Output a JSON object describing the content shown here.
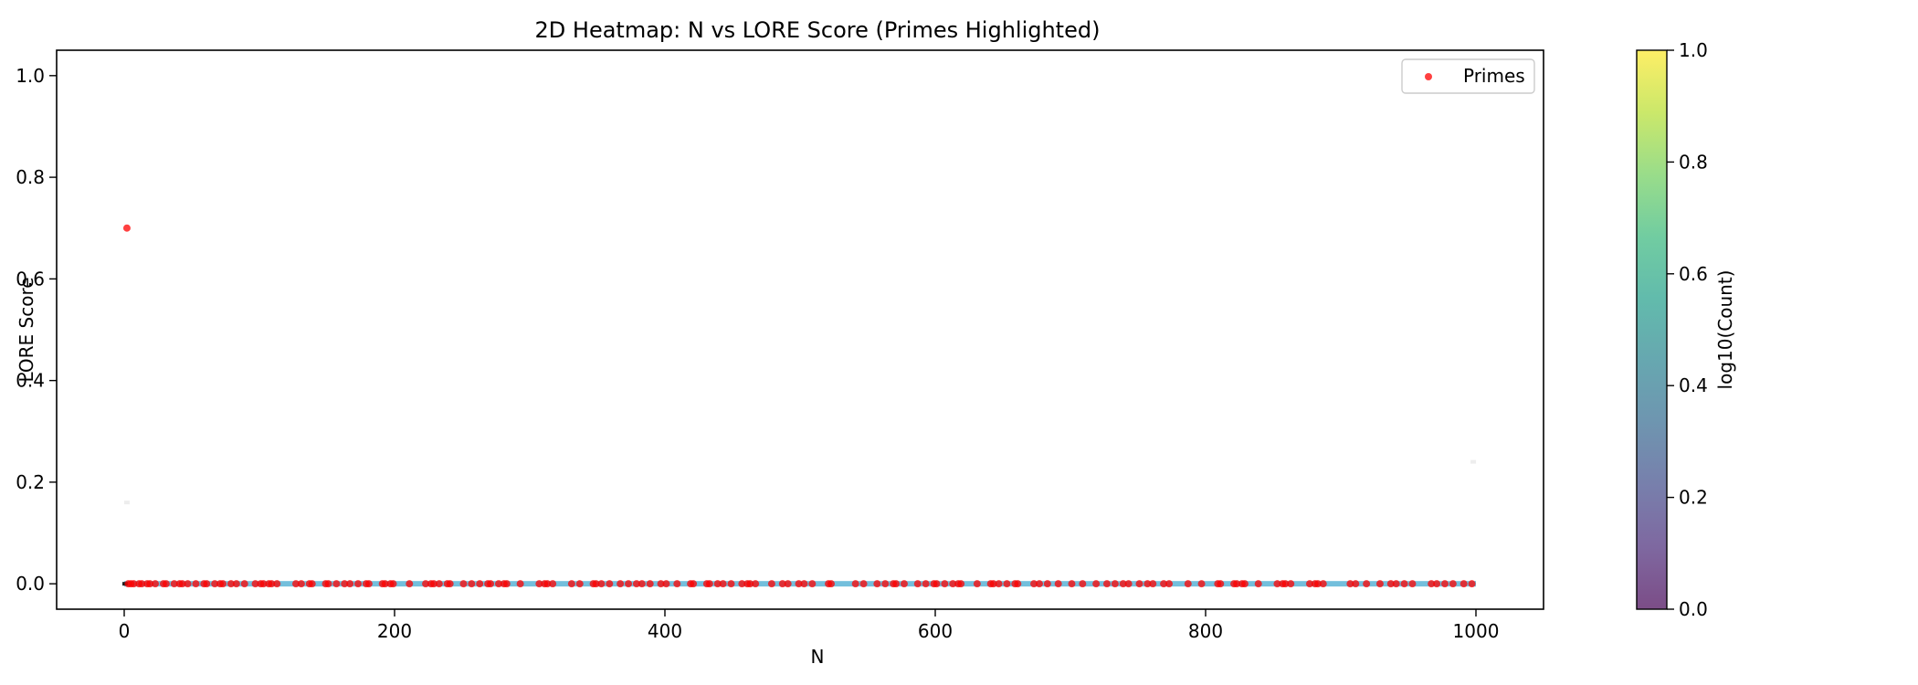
{
  "chart_data": {
    "type": "scatter",
    "title": "2D Heatmap: N vs LORE Score (Primes Highlighted)",
    "xlabel": "N",
    "ylabel": "LORE Score",
    "xlim": [
      -50,
      1050
    ],
    "ylim": [
      -0.05,
      1.05
    ],
    "xticks": [
      0,
      200,
      400,
      600,
      800,
      1000
    ],
    "yticks": [
      0.0,
      0.2,
      0.4,
      0.6,
      0.8,
      1.0
    ],
    "x_tick_labels": [
      "0",
      "200",
      "400",
      "600",
      "800",
      "1000"
    ],
    "y_tick_labels": [
      "0.0",
      "0.2",
      "0.4",
      "0.6",
      "0.8",
      "1.0"
    ],
    "grid": false,
    "legend": {
      "position": "top-right",
      "entries": [
        "Primes"
      ]
    },
    "series": [
      {
        "name": "Primes",
        "color": "#ff0000",
        "highlight_points": [
          {
            "x": 2,
            "y": 0.7
          }
        ],
        "baseline_y": 0.0,
        "x_max": 1000
      }
    ],
    "heatmap": {
      "x_range": [
        0,
        1000
      ],
      "y_value": 0.0,
      "cell_color": "#5ab4d6",
      "faint_cells": [
        {
          "x": 2,
          "y": 0.16
        },
        {
          "x": 998,
          "y": 0.24
        }
      ]
    },
    "colorbar": {
      "label": "log10(Count)",
      "range": [
        0,
        1
      ],
      "ticks": [
        0.0,
        0.2,
        0.4,
        0.6,
        0.8,
        1.0
      ],
      "tick_labels": [
        "0.0",
        "0.2",
        "0.4",
        "0.6",
        "0.8",
        "1.0"
      ],
      "colormap": [
        "#440154",
        "#482878",
        "#3e4989",
        "#31688e",
        "#26828e",
        "#1f9e89",
        "#35b779",
        "#6ece58",
        "#b5de2b",
        "#fde725"
      ]
    }
  }
}
